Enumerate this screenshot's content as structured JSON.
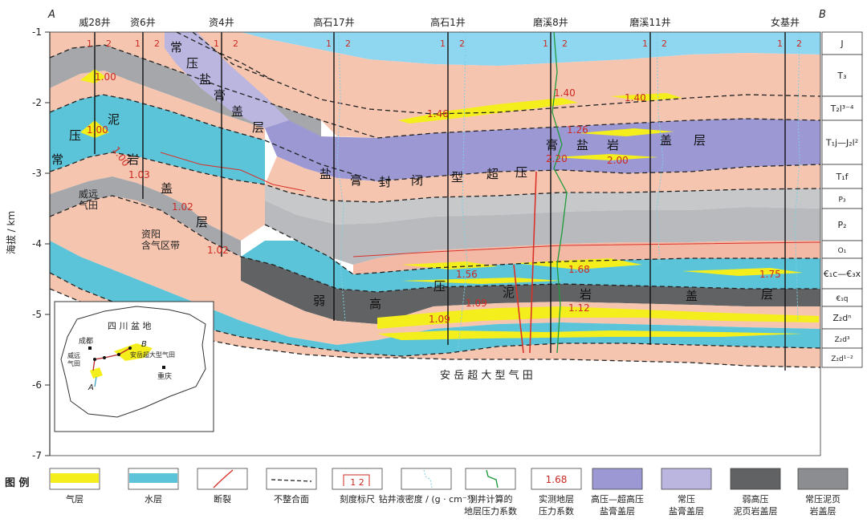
{
  "corners": {
    "a": "A",
    "b": "B"
  },
  "y_axis": {
    "title": "海拔 / km",
    "ticks": [
      -1,
      -2,
      -3,
      -4,
      -5,
      -6,
      -7
    ]
  },
  "wells": [
    {
      "name": "威28井",
      "x": 118
    },
    {
      "name": "资6井",
      "x": 178
    },
    {
      "name": "资4井",
      "x": 276
    },
    {
      "name": "高石17井",
      "x": 416
    },
    {
      "name": "高石1井",
      "x": 558
    },
    {
      "name": "磨溪8井",
      "x": 686
    },
    {
      "name": "磨溪11井",
      "x": 810
    },
    {
      "name": "女基井",
      "x": 978
    }
  ],
  "scale_ticks": [
    "1",
    "2"
  ],
  "strata": [
    "J",
    "T₃",
    "T₂l³⁻⁴",
    "T₁j—J₂l²",
    "T₁f",
    "P₃",
    "P₂",
    "O₁",
    "€₁c—€₃x",
    "€₁q",
    "Z₂dⁿ",
    "Z₂d³",
    "Z₂d¹⁻²"
  ],
  "pressure_values": [
    "1.00",
    "1.00",
    "1.00",
    "1.03",
    "1.02",
    "1.02",
    "1.46",
    "1.40",
    "1.40",
    "1.26",
    "2.20",
    "2.00",
    "1.56",
    "1.68",
    "1.75",
    "1.09",
    "1.12",
    "1.09"
  ],
  "cap_labels": {
    "left_chars": [
      "常",
      "压",
      "泥",
      "岩",
      "盖",
      "层"
    ],
    "top_chars": [
      "常",
      "压",
      "盐",
      "膏",
      "盖",
      "层"
    ],
    "mid_chars": [
      "盐",
      "膏",
      "封",
      "闭",
      "型",
      "超",
      "压",
      "膏",
      "盐",
      "岩",
      "盖",
      "层"
    ],
    "low_chars": [
      "弱",
      "高",
      "压",
      "泥",
      "岩",
      "盖",
      "层"
    ]
  },
  "field_labels": {
    "weiyuan": "威远\n气田",
    "ziyang": "资阳\n含气区带",
    "anyue": "安 岳 超 大 型 气 田"
  },
  "inset": {
    "basin": "四 川 盆 地",
    "chengdu": "成都",
    "chongqing": "重庆",
    "weiyuan": "威远\n气田",
    "anyue": "安岳超大型气田",
    "a": "A",
    "b": "B"
  },
  "legend": {
    "title": "图 例",
    "items": [
      {
        "key": "gas",
        "label": "气层"
      },
      {
        "key": "water",
        "label": "水层"
      },
      {
        "key": "fault",
        "label": "断裂"
      },
      {
        "key": "unconf",
        "label": "不整合面"
      },
      {
        "key": "scale",
        "label": "刻度标尺",
        "sample": "1  2"
      },
      {
        "key": "density",
        "label": "钻井液密度 / (g · cm⁻³)"
      },
      {
        "key": "calc",
        "label": "测井计算的\n地层压力系数"
      },
      {
        "key": "measured",
        "label": "实测地层\n压力系数",
        "sample": "1.68"
      },
      {
        "key": "salt_hp",
        "label": "高压—超高压\n盐膏盖层"
      },
      {
        "key": "salt_np",
        "label": "常压\n盐膏盖层"
      },
      {
        "key": "shale_whp",
        "label": "弱高压\n泥页岩盖层"
      },
      {
        "key": "shale_np",
        "label": "常压泥页\n岩盖层"
      }
    ]
  },
  "colors": {
    "sky_blue": "#8fd6f1",
    "salmon": "#f6c5b0",
    "light_gray": "#c7c8ca",
    "mid_gray": "#8c8d90",
    "dark_gray": "#616264",
    "salt_purple": "#9b98d4",
    "salt_light": "#bab6e0",
    "water_cyan": "#5bc4d9",
    "gas_yellow": "#f4ef1c",
    "fault_red": "#d9322b",
    "measure_red": "#cc2a22"
  }
}
